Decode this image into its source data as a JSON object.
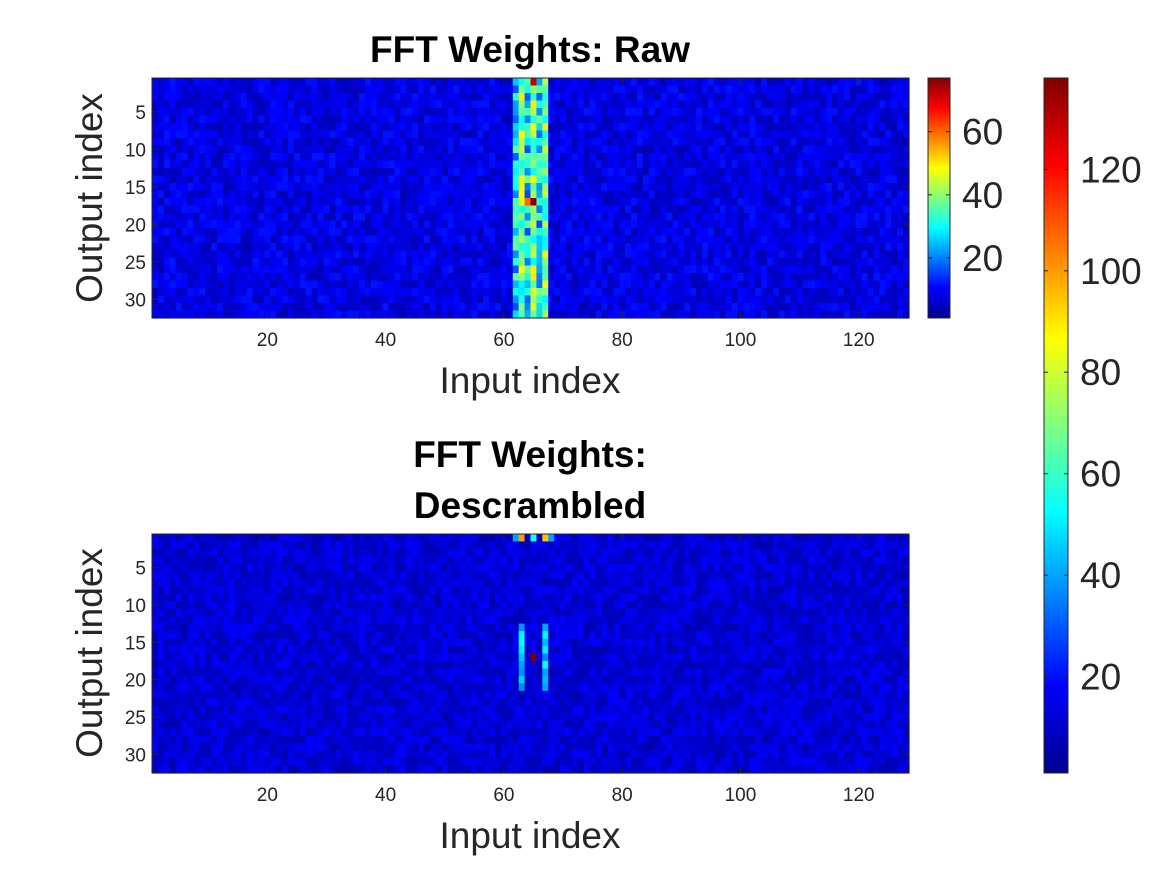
{
  "chart_data": [
    {
      "type": "heatmap",
      "title": "FFT Weights: Raw",
      "xlabel": "Input index",
      "ylabel": "Output index",
      "x_range": [
        1,
        128
      ],
      "y_range": [
        1,
        32
      ],
      "y_direction": "reverse",
      "x_ticks": [
        "20",
        "40",
        "60",
        "80",
        "100",
        "120"
      ],
      "y_ticks": [
        "5",
        "10",
        "15",
        "20",
        "25",
        "30"
      ],
      "colormap": "jet",
      "clim": [
        1,
        77
      ],
      "colorbar_ticks": [
        "20",
        "40",
        "60"
      ],
      "colorbar_tick_values": [
        20,
        40,
        60
      ],
      "background_level": 8,
      "band": {
        "x_from": 62,
        "x_to": 67
      },
      "peaks": [
        {
          "x": 65,
          "y": 1,
          "value": 72
        },
        {
          "x": 65,
          "y": 17,
          "value": 77
        },
        {
          "x": 64,
          "y": 17,
          "value": 60
        },
        {
          "x": 65,
          "y": 4,
          "value": 50
        },
        {
          "x": 65,
          "y": 7,
          "value": 48
        },
        {
          "x": 65,
          "y": 27,
          "value": 50
        },
        {
          "x": 63,
          "y": 15,
          "value": 48
        },
        {
          "x": 65,
          "y": 31,
          "value": 46
        }
      ]
    },
    {
      "type": "heatmap",
      "title": "FFT Weights:\nDescrambled",
      "title_lines": [
        "FFT Weights:",
        "Descrambled"
      ],
      "xlabel": "Input index",
      "ylabel": "Output index",
      "x_range": [
        1,
        128
      ],
      "y_range": [
        1,
        32
      ],
      "y_direction": "reverse",
      "x_ticks": [
        "20",
        "40",
        "60",
        "80",
        "100",
        "120"
      ],
      "y_ticks": [
        "5",
        "10",
        "15",
        "20",
        "25",
        "30"
      ],
      "colormap": "jet",
      "clim": [
        1,
        138
      ],
      "colorbar_ticks": [
        "20",
        "40",
        "60",
        "80",
        "100",
        "120"
      ],
      "colorbar_tick_values": [
        20,
        40,
        60,
        80,
        100,
        120
      ],
      "background_level": 12,
      "peaks": [
        {
          "x": 65,
          "y": 17,
          "value": 138
        },
        {
          "x": 63,
          "y": 1,
          "value": 100
        },
        {
          "x": 67,
          "y": 1,
          "value": 95
        },
        {
          "x": 65,
          "y": 1,
          "value": 55
        },
        {
          "x": 62,
          "y": 1,
          "value": 40
        },
        {
          "x": 68,
          "y": 1,
          "value": 40
        },
        {
          "x": 63,
          "y": 16,
          "value": 50
        },
        {
          "x": 67,
          "y": 16,
          "value": 50
        }
      ],
      "stripes": [
        {
          "x": 63,
          "y_from": 13,
          "y_to": 21,
          "value": 45
        },
        {
          "x": 67,
          "y_from": 13,
          "y_to": 21,
          "value": 45
        }
      ]
    }
  ],
  "colors": {
    "background": "#ffffff",
    "axis_text": "#262626",
    "title_text": "#000000",
    "heatmap_base": "#0a1ecf"
  }
}
